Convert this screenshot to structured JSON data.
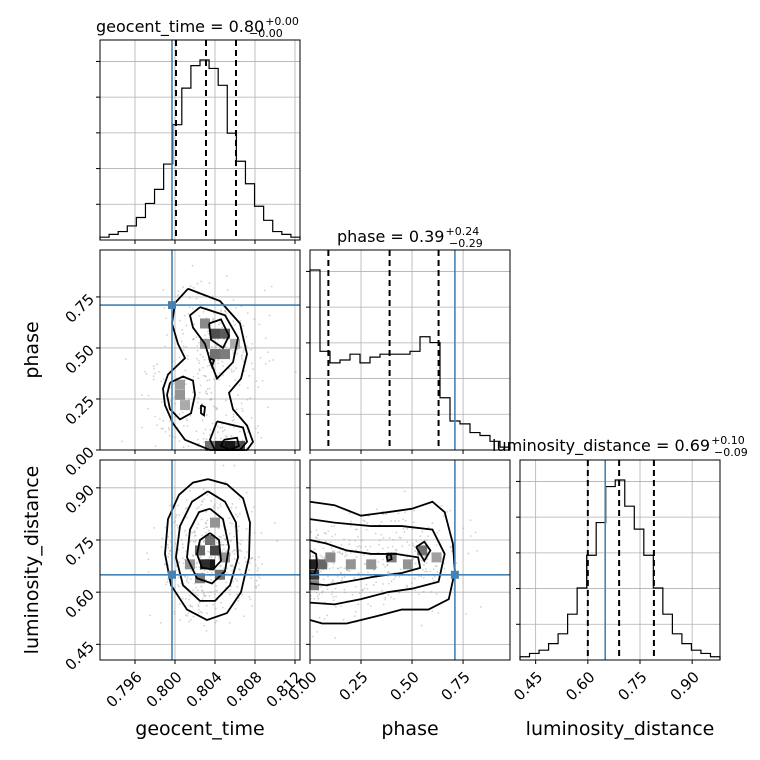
{
  "chart_data": {
    "type": "corner",
    "params": [
      "geocent_time",
      "phase",
      "luminosity_distance"
    ],
    "axis_labels": [
      "geocent_time",
      "phase",
      "luminosity_distance"
    ],
    "ranges": [
      [
        0.7925,
        0.8125
      ],
      [
        0.0,
        0.98
      ],
      [
        0.405,
        0.98
      ]
    ],
    "ticks": {
      "geocent_time": {
        "values": [
          0.796,
          0.8,
          0.804,
          0.808,
          0.812
        ],
        "labels": [
          "0.796",
          "0.800",
          "0.804",
          "0.808",
          "0.812"
        ]
      },
      "phase": {
        "values": [
          0.0,
          0.25,
          0.5,
          0.75
        ],
        "labels": [
          "0.00",
          "0.25",
          "0.50",
          "0.75"
        ]
      },
      "luminosity_distance": {
        "values": [
          0.45,
          0.6,
          0.75,
          0.9
        ],
        "labels": [
          "0.45",
          "0.60",
          "0.75",
          "0.90"
        ]
      }
    },
    "truths": {
      "geocent_time": 0.7997,
      "phase": 0.71,
      "luminosity_distance": 0.65
    },
    "titles": [
      {
        "main": "geocent_time = 0.80",
        "sup": "+0.00",
        "sub": "−0.00"
      },
      {
        "main": "phase = 0.39",
        "sup": "+0.24",
        "sub": "−0.29"
      },
      {
        "main": "luminosity_distance = 0.69",
        "sup": "+0.10",
        "sub": "−0.09"
      }
    ],
    "quantiles": {
      "geocent_time": [
        0.8001,
        0.8031,
        0.8061
      ],
      "phase": [
        0.09,
        0.39,
        0.63
      ],
      "luminosity_distance": [
        0.6,
        0.69,
        0.79
      ]
    },
    "histograms": {
      "geocent_time": {
        "edges_range": [
          0.7925,
          0.8125
        ],
        "counts": [
          1,
          2,
          3,
          5,
          8,
          13,
          18,
          27,
          41,
          54,
          62,
          64,
          61,
          55,
          38,
          28,
          20,
          12,
          7,
          3,
          2,
          1
        ]
      },
      "phase": {
        "edges_range": [
          0.0,
          0.98
        ],
        "counts": [
          62,
          34,
          30,
          31,
          33,
          30,
          32,
          33,
          33,
          33,
          34,
          39,
          37,
          18,
          10,
          9,
          6,
          5,
          3,
          1
        ]
      },
      "luminosity_distance": {
        "edges_range": [
          0.405,
          0.98
        ],
        "counts": [
          1,
          2,
          3,
          5,
          8,
          14,
          22,
          32,
          42,
          53,
          55,
          47,
          40,
          32,
          22,
          14,
          8,
          5,
          3,
          2,
          1
        ]
      }
    },
    "contours": {
      "phase_vs_geocent_time": [
        [
          [
            0.8013,
            0.79
          ],
          [
            0.8045,
            0.73
          ],
          [
            0.8065,
            0.62
          ],
          [
            0.8072,
            0.47
          ],
          [
            0.8066,
            0.35
          ],
          [
            0.8054,
            0.28
          ],
          [
            0.8058,
            0.2
          ],
          [
            0.8072,
            0.12
          ],
          [
            0.8078,
            0.04
          ],
          [
            0.8072,
            0.0
          ],
          [
            0.8035,
            0.0
          ],
          [
            0.801,
            0.05
          ],
          [
            0.7998,
            0.13
          ],
          [
            0.799,
            0.22
          ],
          [
            0.7988,
            0.3
          ],
          [
            0.7993,
            0.37
          ],
          [
            0.801,
            0.45
          ],
          [
            0.8003,
            0.52
          ],
          [
            0.7997,
            0.62
          ],
          [
            0.8,
            0.72
          ],
          [
            0.8013,
            0.79
          ]
        ],
        [
          [
            0.8025,
            0.7
          ],
          [
            0.805,
            0.66
          ],
          [
            0.8063,
            0.55
          ],
          [
            0.8058,
            0.43
          ],
          [
            0.8042,
            0.35
          ],
          [
            0.8035,
            0.44
          ],
          [
            0.803,
            0.52
          ],
          [
            0.8018,
            0.6
          ],
          [
            0.8015,
            0.66
          ],
          [
            0.8025,
            0.7
          ]
        ],
        [
          [
            0.7995,
            0.33
          ],
          [
            0.8008,
            0.36
          ],
          [
            0.8018,
            0.34
          ],
          [
            0.802,
            0.27
          ],
          [
            0.8016,
            0.18
          ],
          [
            0.8005,
            0.15
          ],
          [
            0.7995,
            0.2
          ],
          [
            0.7992,
            0.27
          ],
          [
            0.7995,
            0.33
          ]
        ],
        [
          [
            0.8042,
            0.14
          ],
          [
            0.8068,
            0.11
          ],
          [
            0.8072,
            0.04
          ],
          [
            0.8065,
            0.0
          ],
          [
            0.804,
            0.0
          ],
          [
            0.8035,
            0.05
          ],
          [
            0.8042,
            0.14
          ]
        ],
        [
          [
            0.8034,
            0.62
          ],
          [
            0.8046,
            0.64
          ],
          [
            0.8054,
            0.56
          ],
          [
            0.8048,
            0.5
          ],
          [
            0.8036,
            0.54
          ],
          [
            0.8034,
            0.62
          ]
        ],
        [
          [
            0.8049,
            0.05
          ],
          [
            0.8062,
            0.06
          ],
          [
            0.8064,
            0.02
          ],
          [
            0.8055,
            0.0
          ],
          [
            0.8046,
            0.02
          ],
          [
            0.8049,
            0.05
          ]
        ],
        [
          [
            0.8034,
            0.45
          ],
          [
            0.8039,
            0.44
          ],
          [
            0.8037,
            0.41
          ],
          [
            0.8034,
            0.45
          ]
        ],
        [
          [
            0.8026,
            0.22
          ],
          [
            0.803,
            0.21
          ],
          [
            0.8029,
            0.17
          ],
          [
            0.8026,
            0.18
          ],
          [
            0.8026,
            0.22
          ]
        ]
      ],
      "lumdist_vs_geocent_time": [
        [
          [
            0.8033,
            0.925
          ],
          [
            0.8052,
            0.91
          ],
          [
            0.8068,
            0.87
          ],
          [
            0.8075,
            0.8
          ],
          [
            0.8074,
            0.7
          ],
          [
            0.8066,
            0.6
          ],
          [
            0.8052,
            0.54
          ],
          [
            0.8032,
            0.52
          ],
          [
            0.8012,
            0.55
          ],
          [
            0.7996,
            0.62
          ],
          [
            0.799,
            0.71
          ],
          [
            0.7993,
            0.81
          ],
          [
            0.8004,
            0.88
          ],
          [
            0.8018,
            0.915
          ],
          [
            0.8033,
            0.925
          ]
        ],
        [
          [
            0.8033,
            0.89
          ],
          [
            0.805,
            0.86
          ],
          [
            0.8061,
            0.8
          ],
          [
            0.8063,
            0.7
          ],
          [
            0.8055,
            0.62
          ],
          [
            0.804,
            0.575
          ],
          [
            0.8025,
            0.575
          ],
          [
            0.8008,
            0.62
          ],
          [
            0.8001,
            0.7
          ],
          [
            0.8005,
            0.79
          ],
          [
            0.8017,
            0.86
          ],
          [
            0.8033,
            0.89
          ]
        ],
        [
          [
            0.8035,
            0.84
          ],
          [
            0.8048,
            0.81
          ],
          [
            0.8054,
            0.73
          ],
          [
            0.805,
            0.66
          ],
          [
            0.8037,
            0.625
          ],
          [
            0.8022,
            0.64
          ],
          [
            0.8012,
            0.7
          ],
          [
            0.8015,
            0.78
          ],
          [
            0.8024,
            0.83
          ],
          [
            0.8035,
            0.84
          ]
        ],
        [
          [
            0.8035,
            0.77
          ],
          [
            0.8044,
            0.75
          ],
          [
            0.8046,
            0.69
          ],
          [
            0.8038,
            0.665
          ],
          [
            0.8027,
            0.67
          ],
          [
            0.8022,
            0.71
          ],
          [
            0.8025,
            0.75
          ],
          [
            0.8035,
            0.77
          ]
        ]
      ],
      "lumdist_vs_phase": [
        [
          [
            0.0,
            0.86
          ],
          [
            0.12,
            0.85
          ],
          [
            0.25,
            0.82
          ],
          [
            0.38,
            0.83
          ],
          [
            0.5,
            0.84
          ],
          [
            0.6,
            0.86
          ],
          [
            0.66,
            0.83
          ],
          [
            0.7,
            0.74
          ],
          [
            0.71,
            0.66
          ],
          [
            0.68,
            0.58
          ],
          [
            0.58,
            0.55
          ],
          [
            0.45,
            0.55
          ],
          [
            0.32,
            0.53
          ],
          [
            0.18,
            0.51
          ],
          [
            0.06,
            0.51
          ],
          [
            0.0,
            0.52
          ]
        ],
        [
          [
            0.0,
            0.81
          ],
          [
            0.12,
            0.8
          ],
          [
            0.3,
            0.79
          ],
          [
            0.45,
            0.79
          ],
          [
            0.6,
            0.78
          ],
          [
            0.66,
            0.71
          ],
          [
            0.63,
            0.63
          ],
          [
            0.5,
            0.61
          ],
          [
            0.38,
            0.6
          ],
          [
            0.25,
            0.58
          ],
          [
            0.12,
            0.565
          ],
          [
            0.0,
            0.57
          ]
        ],
        [
          [
            0.0,
            0.75
          ],
          [
            0.08,
            0.74
          ],
          [
            0.18,
            0.72
          ],
          [
            0.3,
            0.71
          ],
          [
            0.42,
            0.71
          ],
          [
            0.53,
            0.7
          ],
          [
            0.54,
            0.67
          ],
          [
            0.45,
            0.655
          ],
          [
            0.32,
            0.645
          ],
          [
            0.18,
            0.63
          ],
          [
            0.08,
            0.62
          ],
          [
            0.0,
            0.625
          ]
        ],
        [
          [
            0.52,
            0.73
          ],
          [
            0.56,
            0.745
          ],
          [
            0.59,
            0.72
          ],
          [
            0.56,
            0.69
          ],
          [
            0.52,
            0.73
          ]
        ],
        [
          [
            0.375,
            0.705
          ],
          [
            0.395,
            0.71
          ],
          [
            0.4,
            0.695
          ],
          [
            0.38,
            0.69
          ],
          [
            0.375,
            0.705
          ]
        ],
        [
          [
            0.0,
            0.72
          ],
          [
            0.03,
            0.71
          ],
          [
            0.035,
            0.675
          ],
          [
            0.02,
            0.65
          ],
          [
            0.0,
            0.655
          ]
        ]
      ]
    },
    "density_cells": {
      "phase_vs_geocent_time": [
        [
          0.804,
          0.57,
          0.7
        ],
        [
          0.805,
          0.57,
          0.65
        ],
        [
          0.804,
          0.47,
          0.55
        ],
        [
          0.805,
          0.47,
          0.5
        ],
        [
          0.803,
          0.62,
          0.45
        ],
        [
          0.8055,
          0.02,
          0.95
        ],
        [
          0.8045,
          0.02,
          0.9
        ],
        [
          0.8065,
          0.02,
          0.7
        ],
        [
          0.8035,
          0.02,
          0.55
        ],
        [
          0.8005,
          0.27,
          0.4
        ],
        [
          0.8005,
          0.32,
          0.35
        ],
        [
          0.801,
          0.22,
          0.3
        ],
        [
          0.803,
          0.52,
          0.4
        ],
        [
          0.806,
          0.52,
          0.3
        ]
      ],
      "lumdist_vs_geocent_time": [
        [
          0.8035,
          0.68,
          0.95
        ],
        [
          0.803,
          0.68,
          0.85
        ],
        [
          0.804,
          0.72,
          0.75
        ],
        [
          0.8025,
          0.72,
          0.6
        ],
        [
          0.8035,
          0.75,
          0.55
        ],
        [
          0.8045,
          0.65,
          0.55
        ],
        [
          0.8025,
          0.64,
          0.5
        ],
        [
          0.804,
          0.8,
          0.4
        ],
        [
          0.8015,
          0.68,
          0.4
        ],
        [
          0.805,
          0.7,
          0.4
        ]
      ],
      "lumdist_vs_phase": [
        [
          0.02,
          0.68,
          0.9
        ],
        [
          0.02,
          0.65,
          0.8
        ],
        [
          0.06,
          0.68,
          0.6
        ],
        [
          0.1,
          0.7,
          0.45
        ],
        [
          0.2,
          0.68,
          0.4
        ],
        [
          0.4,
          0.7,
          0.5
        ],
        [
          0.55,
          0.72,
          0.55
        ],
        [
          0.48,
          0.68,
          0.4
        ],
        [
          0.3,
          0.68,
          0.4
        ],
        [
          0.02,
          0.62,
          0.5
        ],
        [
          0.62,
          0.7,
          0.35
        ]
      ]
    }
  }
}
